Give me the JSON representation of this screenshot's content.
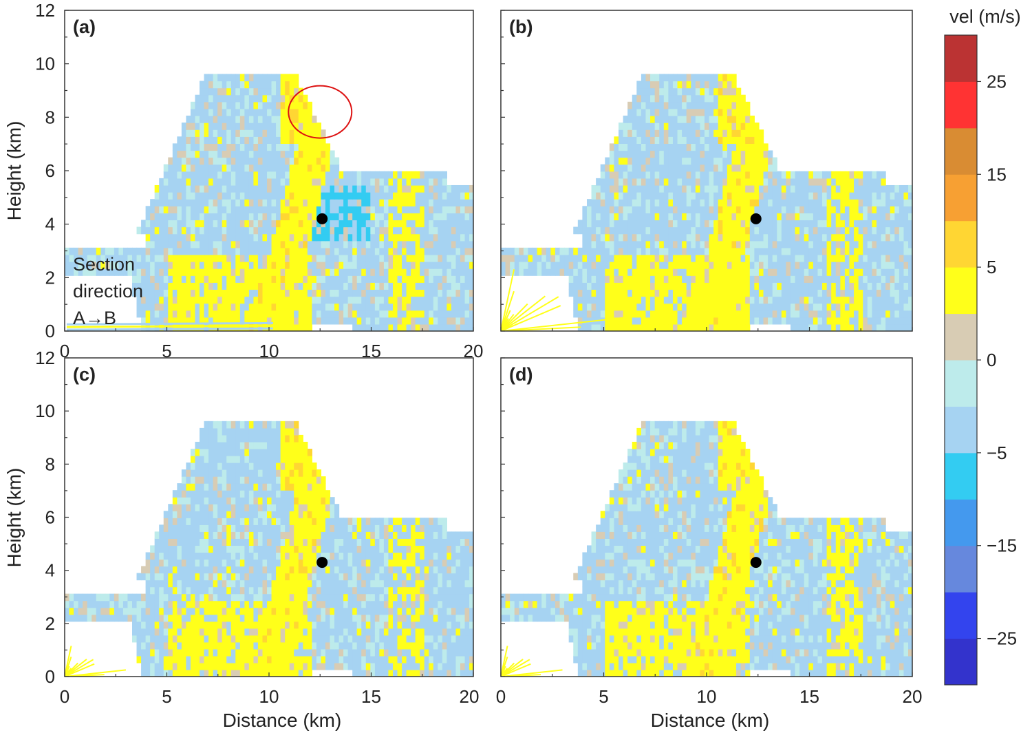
{
  "chart_data": {
    "type": "heatmap",
    "description_unit": "radial velocity",
    "xlabel": "Distance (km)",
    "ylabel": "Height (km)",
    "xlim": [
      0,
      20
    ],
    "ylim": [
      0,
      12
    ],
    "x_ticks": [
      "0",
      "5",
      "10",
      "15",
      "20"
    ],
    "y_ticks": [
      "0",
      "2",
      "4",
      "6",
      "8",
      "10",
      "12"
    ],
    "panels": [
      {
        "label": "(a)",
        "marker": {
          "x": 12.6,
          "y": 4.2
        },
        "annotation": [
          "Section",
          "direction",
          "A→B"
        ],
        "circle": {
          "x": 12.5,
          "y": 8.2
        }
      },
      {
        "label": "(b)",
        "marker": {
          "x": 12.4,
          "y": 4.2
        }
      },
      {
        "label": "(c)",
        "marker": {
          "x": 12.6,
          "y": 4.3
        }
      },
      {
        "label": "(d)",
        "marker": {
          "x": 12.4,
          "y": 4.3
        }
      }
    ],
    "colorbar": {
      "title": "vel (m/s)",
      "range": [
        -30,
        30
      ],
      "tick_labels": [
        "25",
        "15",
        "5",
        "0",
        "−5",
        "−15",
        "−25"
      ],
      "tick_values": [
        25,
        15,
        5,
        0,
        -5,
        -15,
        -25
      ],
      "bins": [
        {
          "from": -30,
          "to": -25,
          "color": "#3333cc"
        },
        {
          "from": -25,
          "to": -20,
          "color": "#3344ee"
        },
        {
          "from": -20,
          "to": -15,
          "color": "#6688dd"
        },
        {
          "from": -15,
          "to": -10,
          "color": "#4499ee"
        },
        {
          "from": -10,
          "to": -5,
          "color": "#33ccf2"
        },
        {
          "from": -5,
          "to": -2,
          "color": "#a6d3f2"
        },
        {
          "from": -2,
          "to": 0,
          "color": "#bdebeb"
        },
        {
          "from": 0,
          "to": 2,
          "color": "#d8ccb4"
        },
        {
          "from": 2,
          "to": 5,
          "color": "#ffff1a"
        },
        {
          "from": 5,
          "to": 10,
          "color": "#ffd633"
        },
        {
          "from": 10,
          "to": 15,
          "color": "#f7a033"
        },
        {
          "from": 15,
          "to": 20,
          "color": "#d98c33"
        },
        {
          "from": 20,
          "to": 25,
          "color": "#ff3333"
        },
        {
          "from": 25,
          "to": 30,
          "color": "#bb3333"
        }
      ]
    }
  }
}
